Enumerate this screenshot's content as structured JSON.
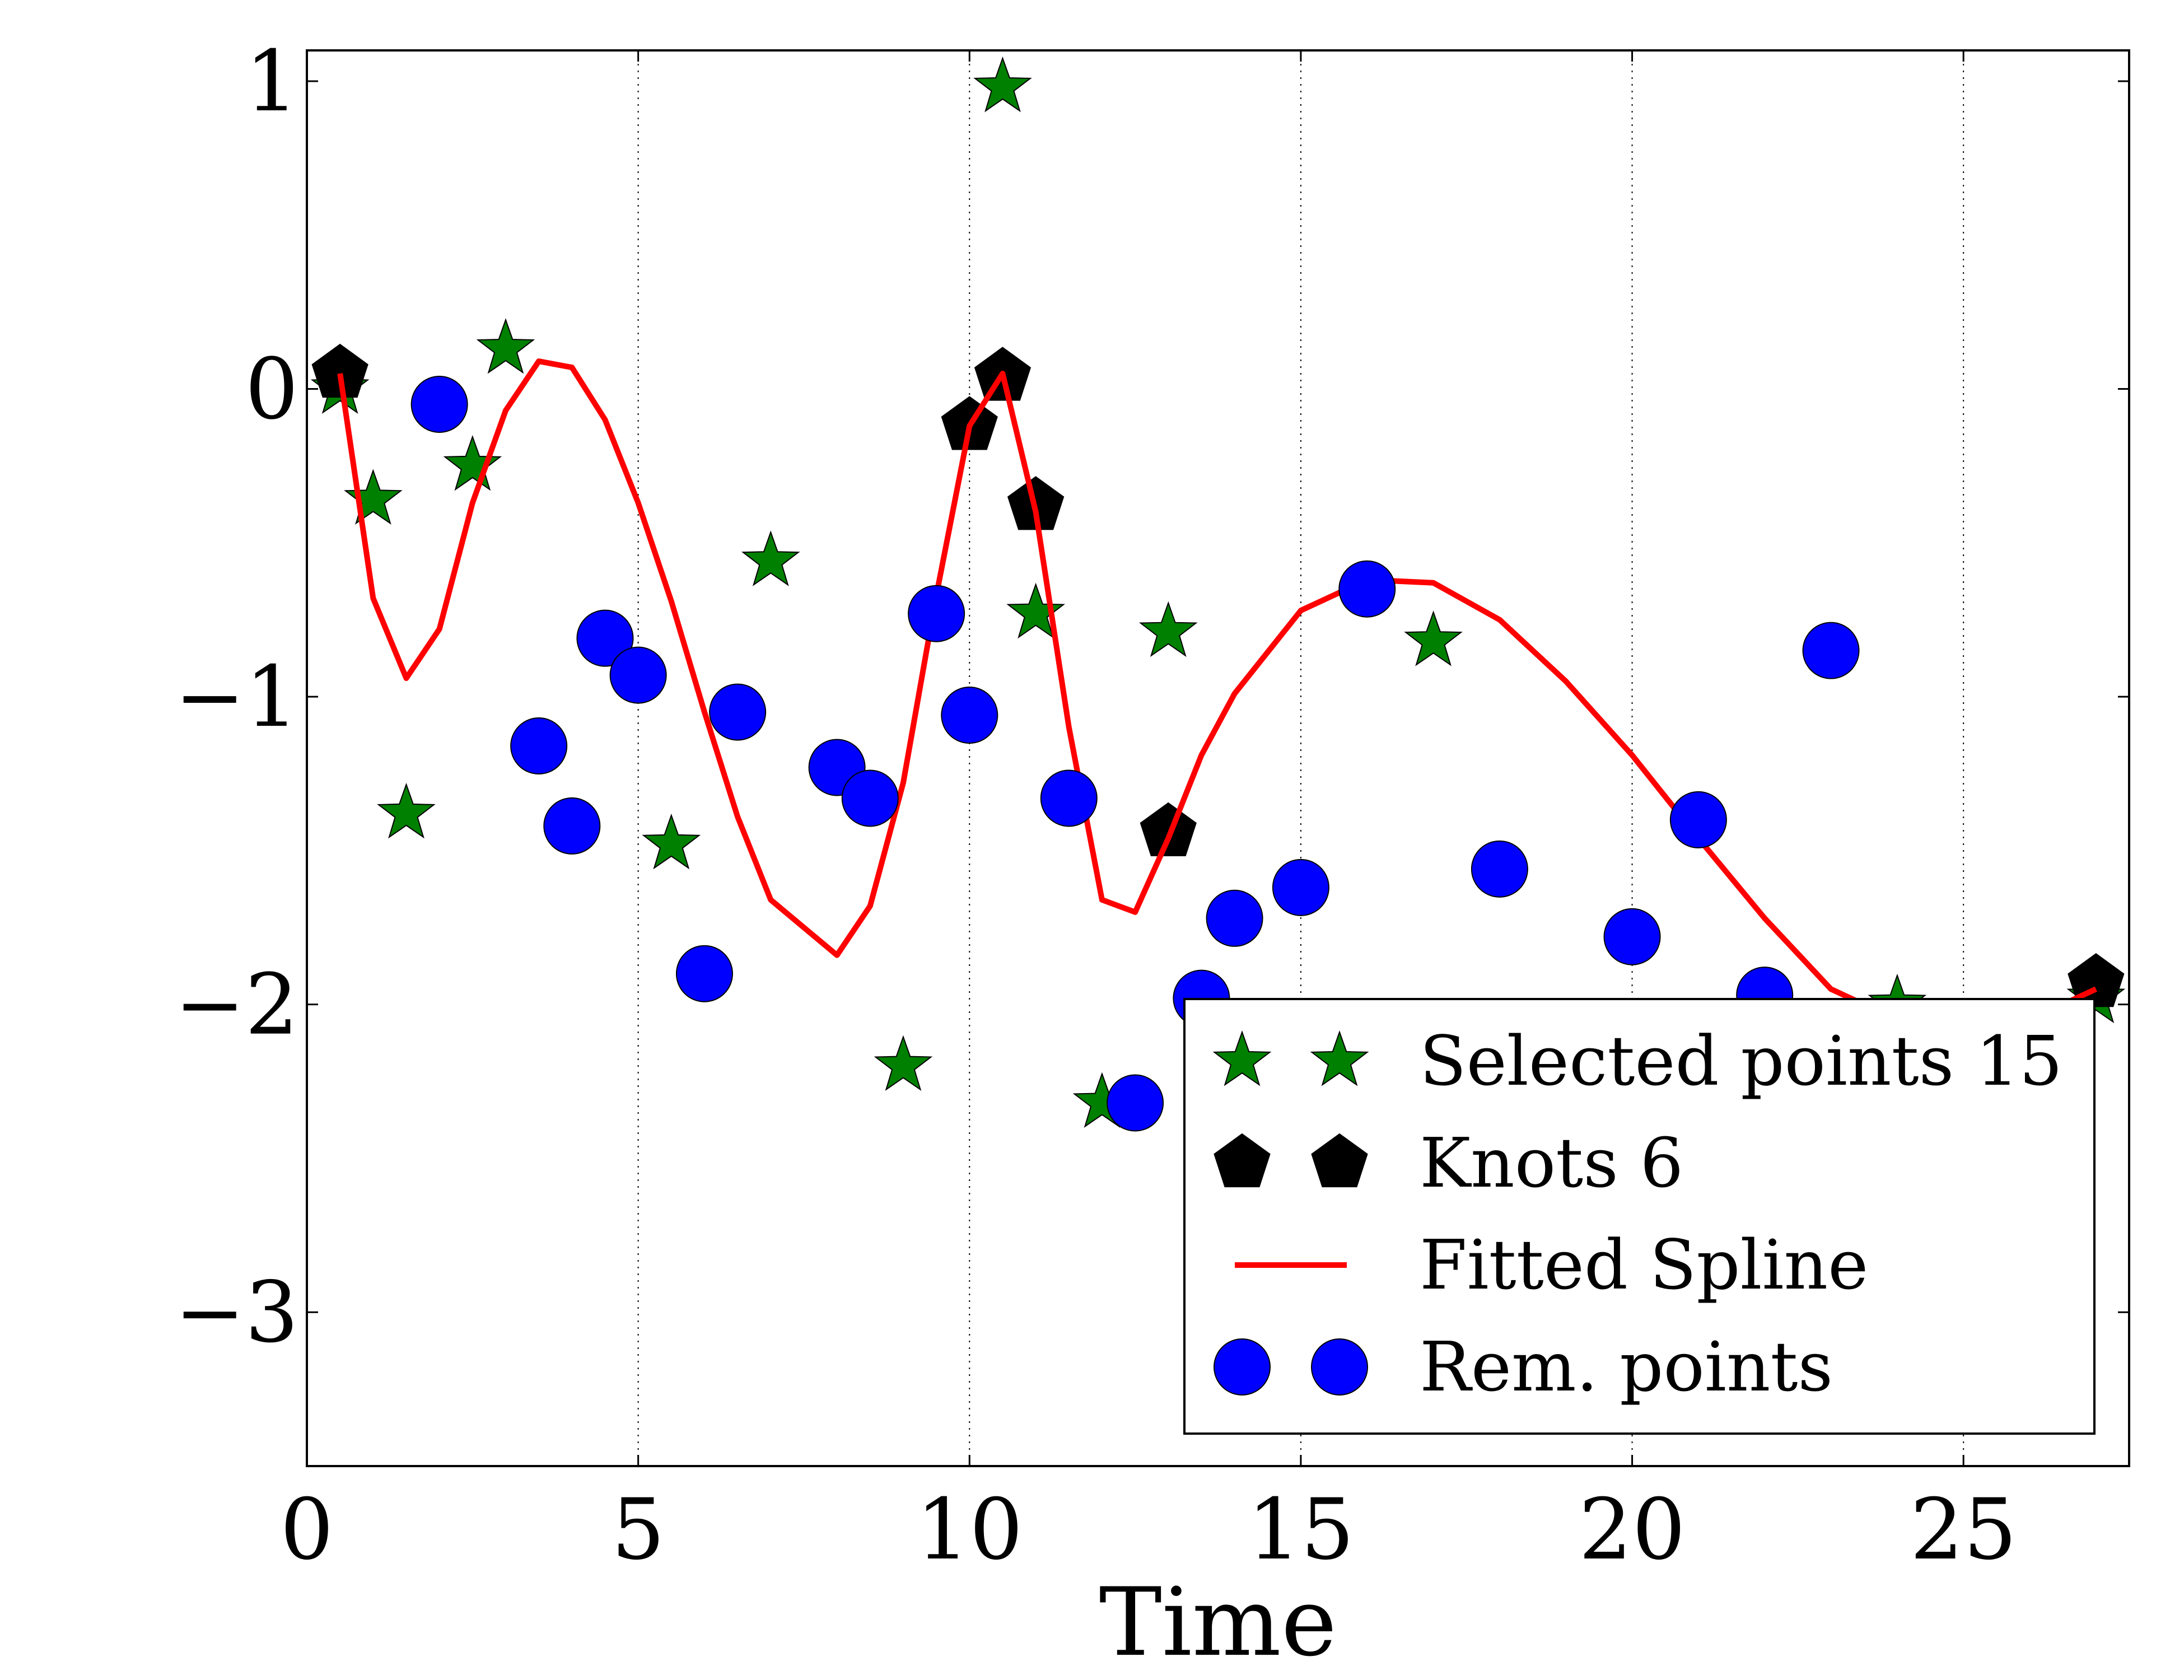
{
  "chart_data": {
    "type": "scatter",
    "title": "",
    "xlabel": "Time",
    "ylabel": "",
    "xlim": [
      0,
      27.5
    ],
    "ylim": [
      -3.5,
      1.1
    ],
    "x_ticks": [
      0,
      5,
      10,
      15,
      20,
      25
    ],
    "y_ticks": [
      1,
      0,
      -1,
      -2,
      -3
    ],
    "x_tick_labels": [
      "0",
      "5",
      "10",
      "15",
      "20",
      "25"
    ],
    "y_tick_labels": [
      "1",
      "0",
      "−1",
      "−2",
      "−3"
    ],
    "grid": "vertical dotted",
    "legend_position": "lower right",
    "colors": {
      "selected": "#008000",
      "knots": "#000000",
      "spline": "#ff0000",
      "remaining": "#0000ff"
    },
    "series": [
      {
        "name": "Selected points 15",
        "marker": "star",
        "x": [
          0.5,
          1.0,
          1.5,
          2.5,
          3.0,
          5.5,
          7.0,
          9.0,
          10.5,
          11.0,
          12.0,
          13.0,
          17.0,
          24.0,
          27.0
        ],
        "y": [
          0.0,
          -0.36,
          -1.38,
          -0.25,
          0.13,
          -1.48,
          -0.56,
          -2.2,
          0.98,
          -0.73,
          -2.32,
          -0.79,
          -0.82,
          -2.0,
          -1.98
        ]
      },
      {
        "name": "Knots 6",
        "marker": "pentagon",
        "x": [
          0.5,
          10.0,
          10.5,
          11.0,
          13.0,
          27.0
        ],
        "y": [
          0.05,
          -0.12,
          0.04,
          -0.38,
          -1.44,
          -1.93
        ]
      },
      {
        "name": "Fitted Spline",
        "marker": "line",
        "x": [
          0.5,
          1.0,
          1.5,
          2.0,
          2.5,
          3.0,
          3.5,
          4.0,
          4.5,
          5.0,
          5.5,
          6.0,
          6.5,
          7.0,
          7.5,
          8.0,
          8.5,
          9.0,
          9.5,
          10.0,
          10.5,
          11.0,
          11.5,
          12.0,
          12.5,
          13.0,
          13.5,
          14.0,
          15.0,
          16.0,
          17.0,
          18.0,
          19.0,
          20.0,
          21.0,
          22.0,
          23.0,
          24.0,
          25.0,
          26.0,
          27.0
        ],
        "y": [
          0.05,
          -0.68,
          -0.94,
          -0.78,
          -0.37,
          -0.07,
          0.09,
          0.07,
          -0.1,
          -0.37,
          -0.69,
          -1.05,
          -1.39,
          -1.66,
          -1.75,
          -1.84,
          -1.68,
          -1.28,
          -0.67,
          -0.12,
          0.05,
          -0.4,
          -1.1,
          -1.66,
          -1.7,
          -1.46,
          -1.19,
          -0.99,
          -0.72,
          -0.62,
          -0.63,
          -0.75,
          -0.95,
          -1.19,
          -1.46,
          -1.72,
          -1.95,
          -2.05,
          -2.1,
          -2.05,
          -1.95
        ]
      },
      {
        "name": "Rem. points",
        "marker": "circle",
        "x": [
          2.0,
          3.5,
          4.0,
          4.5,
          5.0,
          6.0,
          6.5,
          8.0,
          8.5,
          9.5,
          10.0,
          11.5,
          12.5,
          13.5,
          14.0,
          15.0,
          16.0,
          18.0,
          20.0,
          21.0,
          22.0,
          23.0
        ],
        "y": [
          -0.05,
          -1.16,
          -1.42,
          -0.81,
          -0.93,
          -1.9,
          -1.05,
          -1.23,
          -1.33,
          -0.73,
          -1.06,
          -1.33,
          -2.32,
          -1.98,
          -1.72,
          -1.62,
          -0.65,
          -1.56,
          -1.78,
          -1.4,
          -1.97,
          -0.85
        ]
      }
    ]
  }
}
